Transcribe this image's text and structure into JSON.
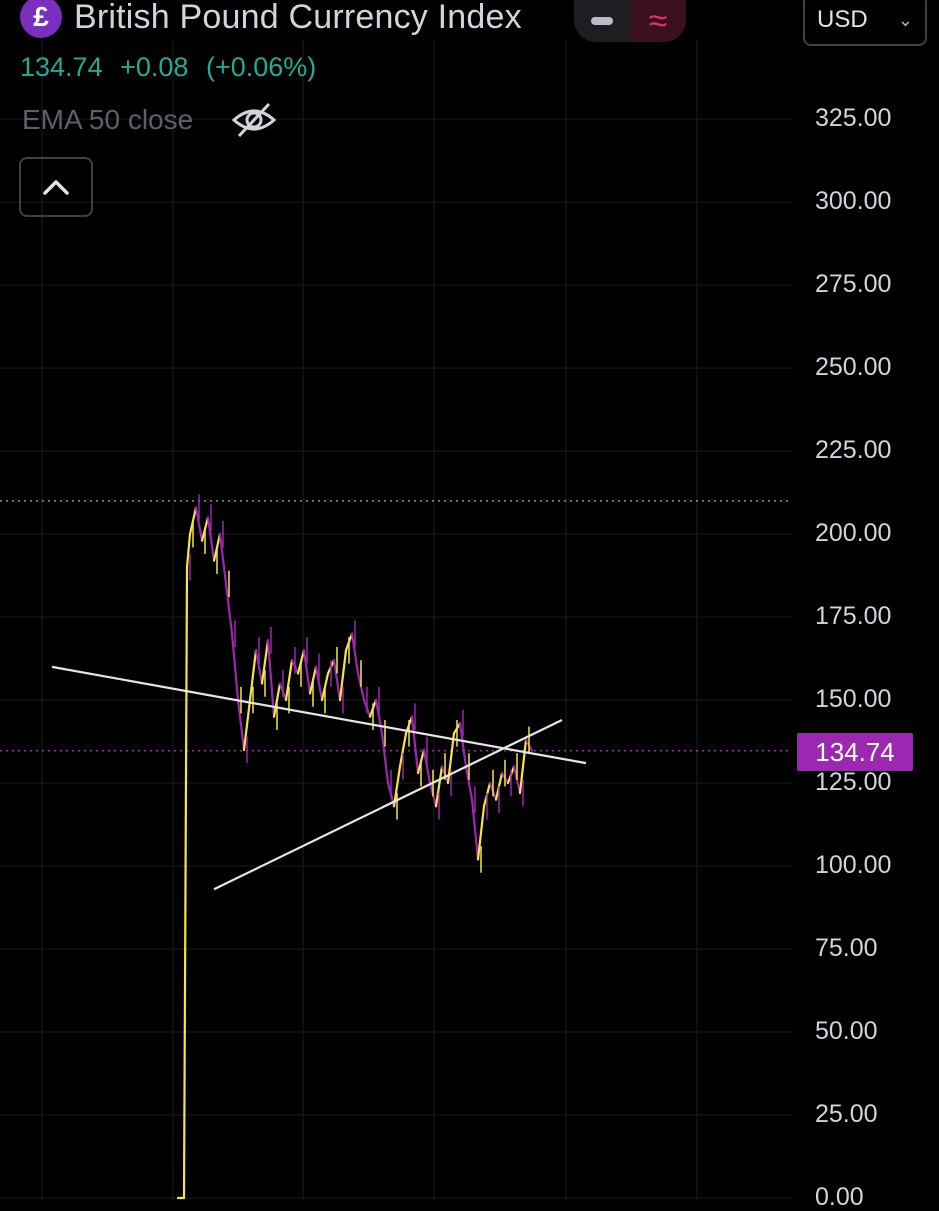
{
  "header": {
    "symbol_glyph": "£",
    "title": "British Pound Currency Index",
    "currency": "USD"
  },
  "quote": {
    "last": "134.74",
    "change": "+0.08",
    "change_pct": "(+0.06%)",
    "color": "#22ab94"
  },
  "indicator": {
    "label": "EMA 50 close",
    "icon": "eye-off-icon"
  },
  "icons": {
    "collapse": "chevron-up-icon",
    "line_mode": "minus-icon",
    "wave_mode": "approx-wave-icon"
  },
  "colors": {
    "price_up": "#f5e642",
    "price_down": "#9c27b0",
    "last_price_badge": "#9c27b0",
    "trendline": "#e6e6e6",
    "grid": "#1b1b1b"
  },
  "chart_data": {
    "type": "line",
    "title": "British Pound Currency Index",
    "y_axis": {
      "position": "right",
      "ylim": [
        0,
        330
      ],
      "ticks": [
        "325.00",
        "300.00",
        "275.00",
        "250.00",
        "225.00",
        "200.00",
        "175.00",
        "150.00",
        "125.00",
        "100.00",
        "75.00",
        "50.00",
        "25.00",
        "0.00"
      ]
    },
    "last_price": 134.74,
    "last_price_label": "134.74",
    "high_marker": 210,
    "grid": true,
    "series": [
      {
        "points": [
          [
            0,
            0
          ],
          [
            1,
            0
          ],
          [
            1.5,
            190
          ],
          [
            2,
            200
          ],
          [
            3,
            208
          ],
          [
            4,
            198
          ],
          [
            5,
            205
          ],
          [
            6,
            192
          ],
          [
            7,
            200
          ],
          [
            8,
            185
          ],
          [
            9,
            170
          ],
          [
            10,
            150
          ],
          [
            11,
            135
          ],
          [
            12,
            150
          ],
          [
            13,
            165
          ],
          [
            14,
            155
          ],
          [
            15,
            168
          ],
          [
            16,
            145
          ],
          [
            17,
            155
          ],
          [
            18,
            150
          ],
          [
            19,
            162
          ],
          [
            20,
            158
          ],
          [
            21,
            165
          ],
          [
            22,
            152
          ],
          [
            23,
            160
          ],
          [
            24,
            150
          ],
          [
            25,
            158
          ],
          [
            26,
            162
          ],
          [
            27,
            150
          ],
          [
            28,
            165
          ],
          [
            29,
            170
          ],
          [
            30,
            158
          ],
          [
            31,
            150
          ],
          [
            32,
            145
          ],
          [
            33,
            150
          ],
          [
            34,
            140
          ],
          [
            35,
            125
          ],
          [
            36,
            118
          ],
          [
            37,
            130
          ],
          [
            38,
            140
          ],
          [
            39,
            145
          ],
          [
            40,
            128
          ],
          [
            41,
            135
          ],
          [
            42,
            125
          ],
          [
            43,
            118
          ],
          [
            44,
            130
          ],
          [
            45,
            125
          ],
          [
            46,
            140
          ],
          [
            47,
            143
          ],
          [
            48,
            130
          ],
          [
            49,
            120
          ],
          [
            50,
            102
          ],
          [
            51,
            118
          ],
          [
            52,
            125
          ],
          [
            53,
            120
          ],
          [
            54,
            128
          ],
          [
            55,
            125
          ],
          [
            56,
            130
          ],
          [
            57,
            122
          ],
          [
            58,
            138
          ],
          [
            59,
            134.74
          ]
        ]
      }
    ],
    "trendlines": [
      {
        "from": [
          -21,
          160
        ],
        "to": [
          68,
          131
        ]
      },
      {
        "from": [
          6,
          93
        ],
        "to": [
          64,
          144
        ]
      }
    ]
  }
}
